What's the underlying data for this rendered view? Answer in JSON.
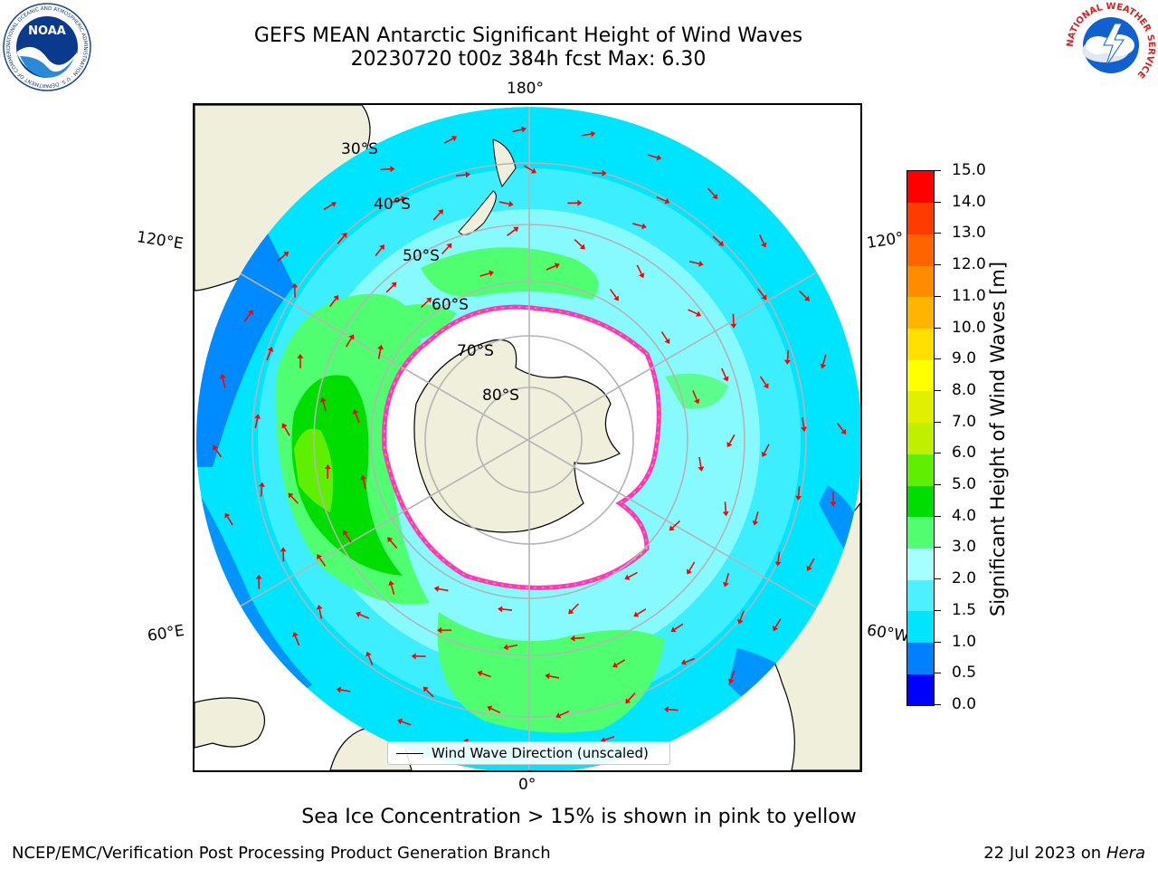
{
  "header": {
    "title": "GEFS MEAN Antarctic Significant Height of Wind Waves",
    "subtitle": "20230720 t00z 384h fcst   Max: 6.30"
  },
  "logos": {
    "noaa_text": "NOAA",
    "noaa_ring_text": "NATIONAL OCEANIC AND ATMOSPHERIC ADMINISTRATION · U.S. DEPARTMENT OF COMMERCE",
    "nws_ring_text": "NATIONAL WEATHER SERVICE"
  },
  "map": {
    "longitude_labels": {
      "top": "180°",
      "bottom": "0°",
      "left_upper": "120°E",
      "left_lower": "60°E",
      "right_upper": "120°",
      "right_lower": "60°W"
    },
    "latitude_labels": [
      "30°S",
      "40°S",
      "50°S",
      "60°S",
      "70°S",
      "80°S"
    ],
    "legend_label": "Wind Wave Direction (unscaled)",
    "colors": {
      "land": "#efefdb",
      "ice_free_open": "#ffffff",
      "grid": "#b4b4b4",
      "arrow": "#ff0000",
      "ice_edge": "#ff33cc"
    }
  },
  "colorbar": {
    "label": "Significant Height of Wind Waves [m]",
    "ticks": [
      "0.0",
      "0.5",
      "1.0",
      "1.5",
      "2.0",
      "3.0",
      "4.0",
      "5.0",
      "6.0",
      "7.0",
      "8.0",
      "9.0",
      "10.0",
      "11.0",
      "12.0",
      "13.0",
      "14.0",
      "15.0"
    ],
    "colors": [
      "#0000ff",
      "#0080ff",
      "#00e5ff",
      "#4cf0ff",
      "#a6ffff",
      "#50ff70",
      "#00dd00",
      "#5ef000",
      "#c0f000",
      "#e0f000",
      "#ffff00",
      "#ffe000",
      "#ffb400",
      "#ff8c00",
      "#ff6400",
      "#ff3c00",
      "#ff0000"
    ]
  },
  "footer": {
    "note": "Sea Ice Concentration > 15% is shown in pink to yellow",
    "left": "NCEP/EMC/Verification Post Processing Product Generation Branch",
    "right_date": "22 Jul 2023 on ",
    "right_host": "Hera"
  }
}
